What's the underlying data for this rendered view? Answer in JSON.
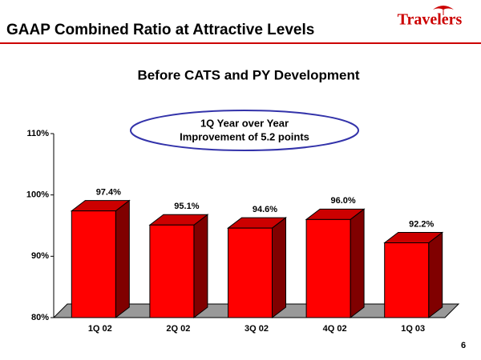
{
  "header": {
    "title": "GAAP Combined Ratio at Attractive Levels",
    "logo": "Travelers",
    "page_number": "6"
  },
  "chart_data": {
    "type": "bar3d",
    "title": "Before CATS and PY Development",
    "annotation": [
      "1Q Year over Year",
      "Improvement of 5.2 points"
    ],
    "categories": [
      "1Q 02",
      "2Q 02",
      "3Q 02",
      "4Q 02",
      "1Q 03"
    ],
    "values": [
      97.4,
      95.1,
      94.6,
      96.0,
      92.2
    ],
    "value_labels": [
      "97.4%",
      "95.1%",
      "94.6%",
      "96.0%",
      "92.2%"
    ],
    "color": "#ff0000",
    "ylim": [
      80,
      110
    ],
    "yticks": [
      {
        "value": 80,
        "label": "80%"
      },
      {
        "value": 90,
        "label": "90%"
      },
      {
        "value": 100,
        "label": "100%"
      },
      {
        "value": 110,
        "label": "110%"
      }
    ]
  }
}
